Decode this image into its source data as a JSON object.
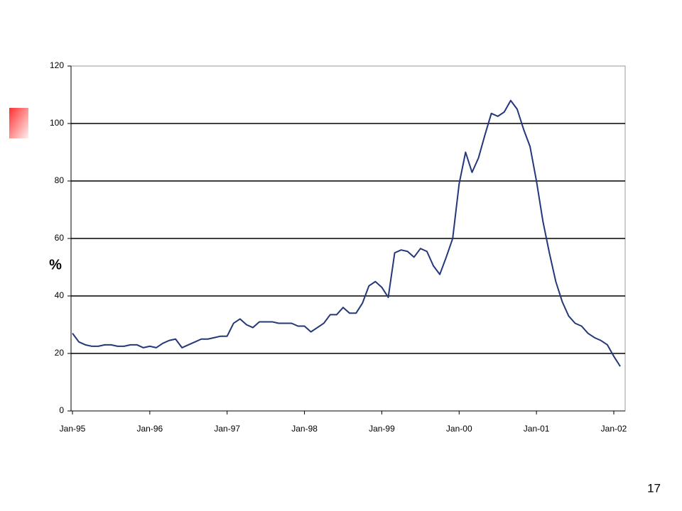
{
  "chart_data": {
    "type": "line",
    "y_label": "%",
    "categories": [
      "Jan-95",
      null,
      null,
      null,
      null,
      null,
      null,
      null,
      null,
      null,
      null,
      null,
      "Jan-96",
      null,
      null,
      null,
      null,
      null,
      null,
      null,
      null,
      null,
      null,
      null,
      "Jan-97",
      null,
      null,
      null,
      null,
      null,
      null,
      null,
      null,
      null,
      null,
      null,
      "Jan-98",
      null,
      null,
      null,
      null,
      null,
      null,
      null,
      null,
      null,
      null,
      null,
      "Jan-99",
      null,
      null,
      null,
      null,
      null,
      null,
      null,
      null,
      null,
      null,
      null,
      "Jan-00",
      null,
      null,
      null,
      null,
      null,
      null,
      null,
      null,
      null,
      null,
      null,
      "Jan-01",
      null,
      null,
      null,
      null,
      null,
      null,
      null,
      null,
      null,
      null,
      null,
      "Jan-02",
      null
    ],
    "series": [
      {
        "color": "#25377a",
        "values": [
          27,
          24,
          23,
          22.5,
          22.5,
          23,
          23,
          22.5,
          22.5,
          23,
          23,
          22,
          22.5,
          22,
          23.5,
          24.5,
          25,
          22,
          23,
          24,
          25,
          25,
          25.5,
          26,
          26,
          30.5,
          32,
          30,
          29,
          31,
          31,
          31,
          30.5,
          30.5,
          30.5,
          29.5,
          29.5,
          27.5,
          29,
          30.5,
          33.5,
          33.5,
          36,
          34,
          34,
          37.5,
          43.5,
          45,
          43,
          39.5,
          55,
          56,
          55.5,
          53.5,
          56.5,
          55.5,
          50.5,
          47.5,
          53.5,
          60,
          79,
          90,
          83,
          88,
          96,
          103.5,
          102.5,
          104,
          108,
          105,
          98,
          92,
          80,
          66,
          55,
          45,
          38,
          33,
          30.5,
          29.5,
          27,
          25.5,
          24.5,
          23,
          19,
          15.5
        ]
      }
    ],
    "ylim": [
      0,
      120
    ],
    "yticks": [
      0,
      20,
      40,
      60,
      80,
      100,
      120
    ],
    "grid": true
  },
  "page_number": "17"
}
